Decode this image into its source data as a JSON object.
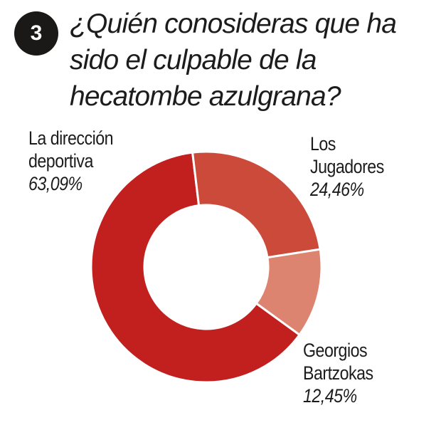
{
  "question_number": "3",
  "question": "¿Quién conosideras que ha sido el culpable de la hecatombe azulgrana?",
  "chart_data": {
    "type": "pie",
    "donut": true,
    "categories": [
      "La dirección\ndeportiva",
      "Los\nJugadores",
      "Georgios\nBartzokas"
    ],
    "values": [
      63.09,
      24.46,
      12.45
    ],
    "value_labels": [
      "63,09%",
      "24,46%",
      "12,45%"
    ],
    "colors": [
      "#c1201e",
      "#cc4a39",
      "#dd8470"
    ],
    "background": "#ffffff",
    "badge_color": "#1b1918"
  }
}
